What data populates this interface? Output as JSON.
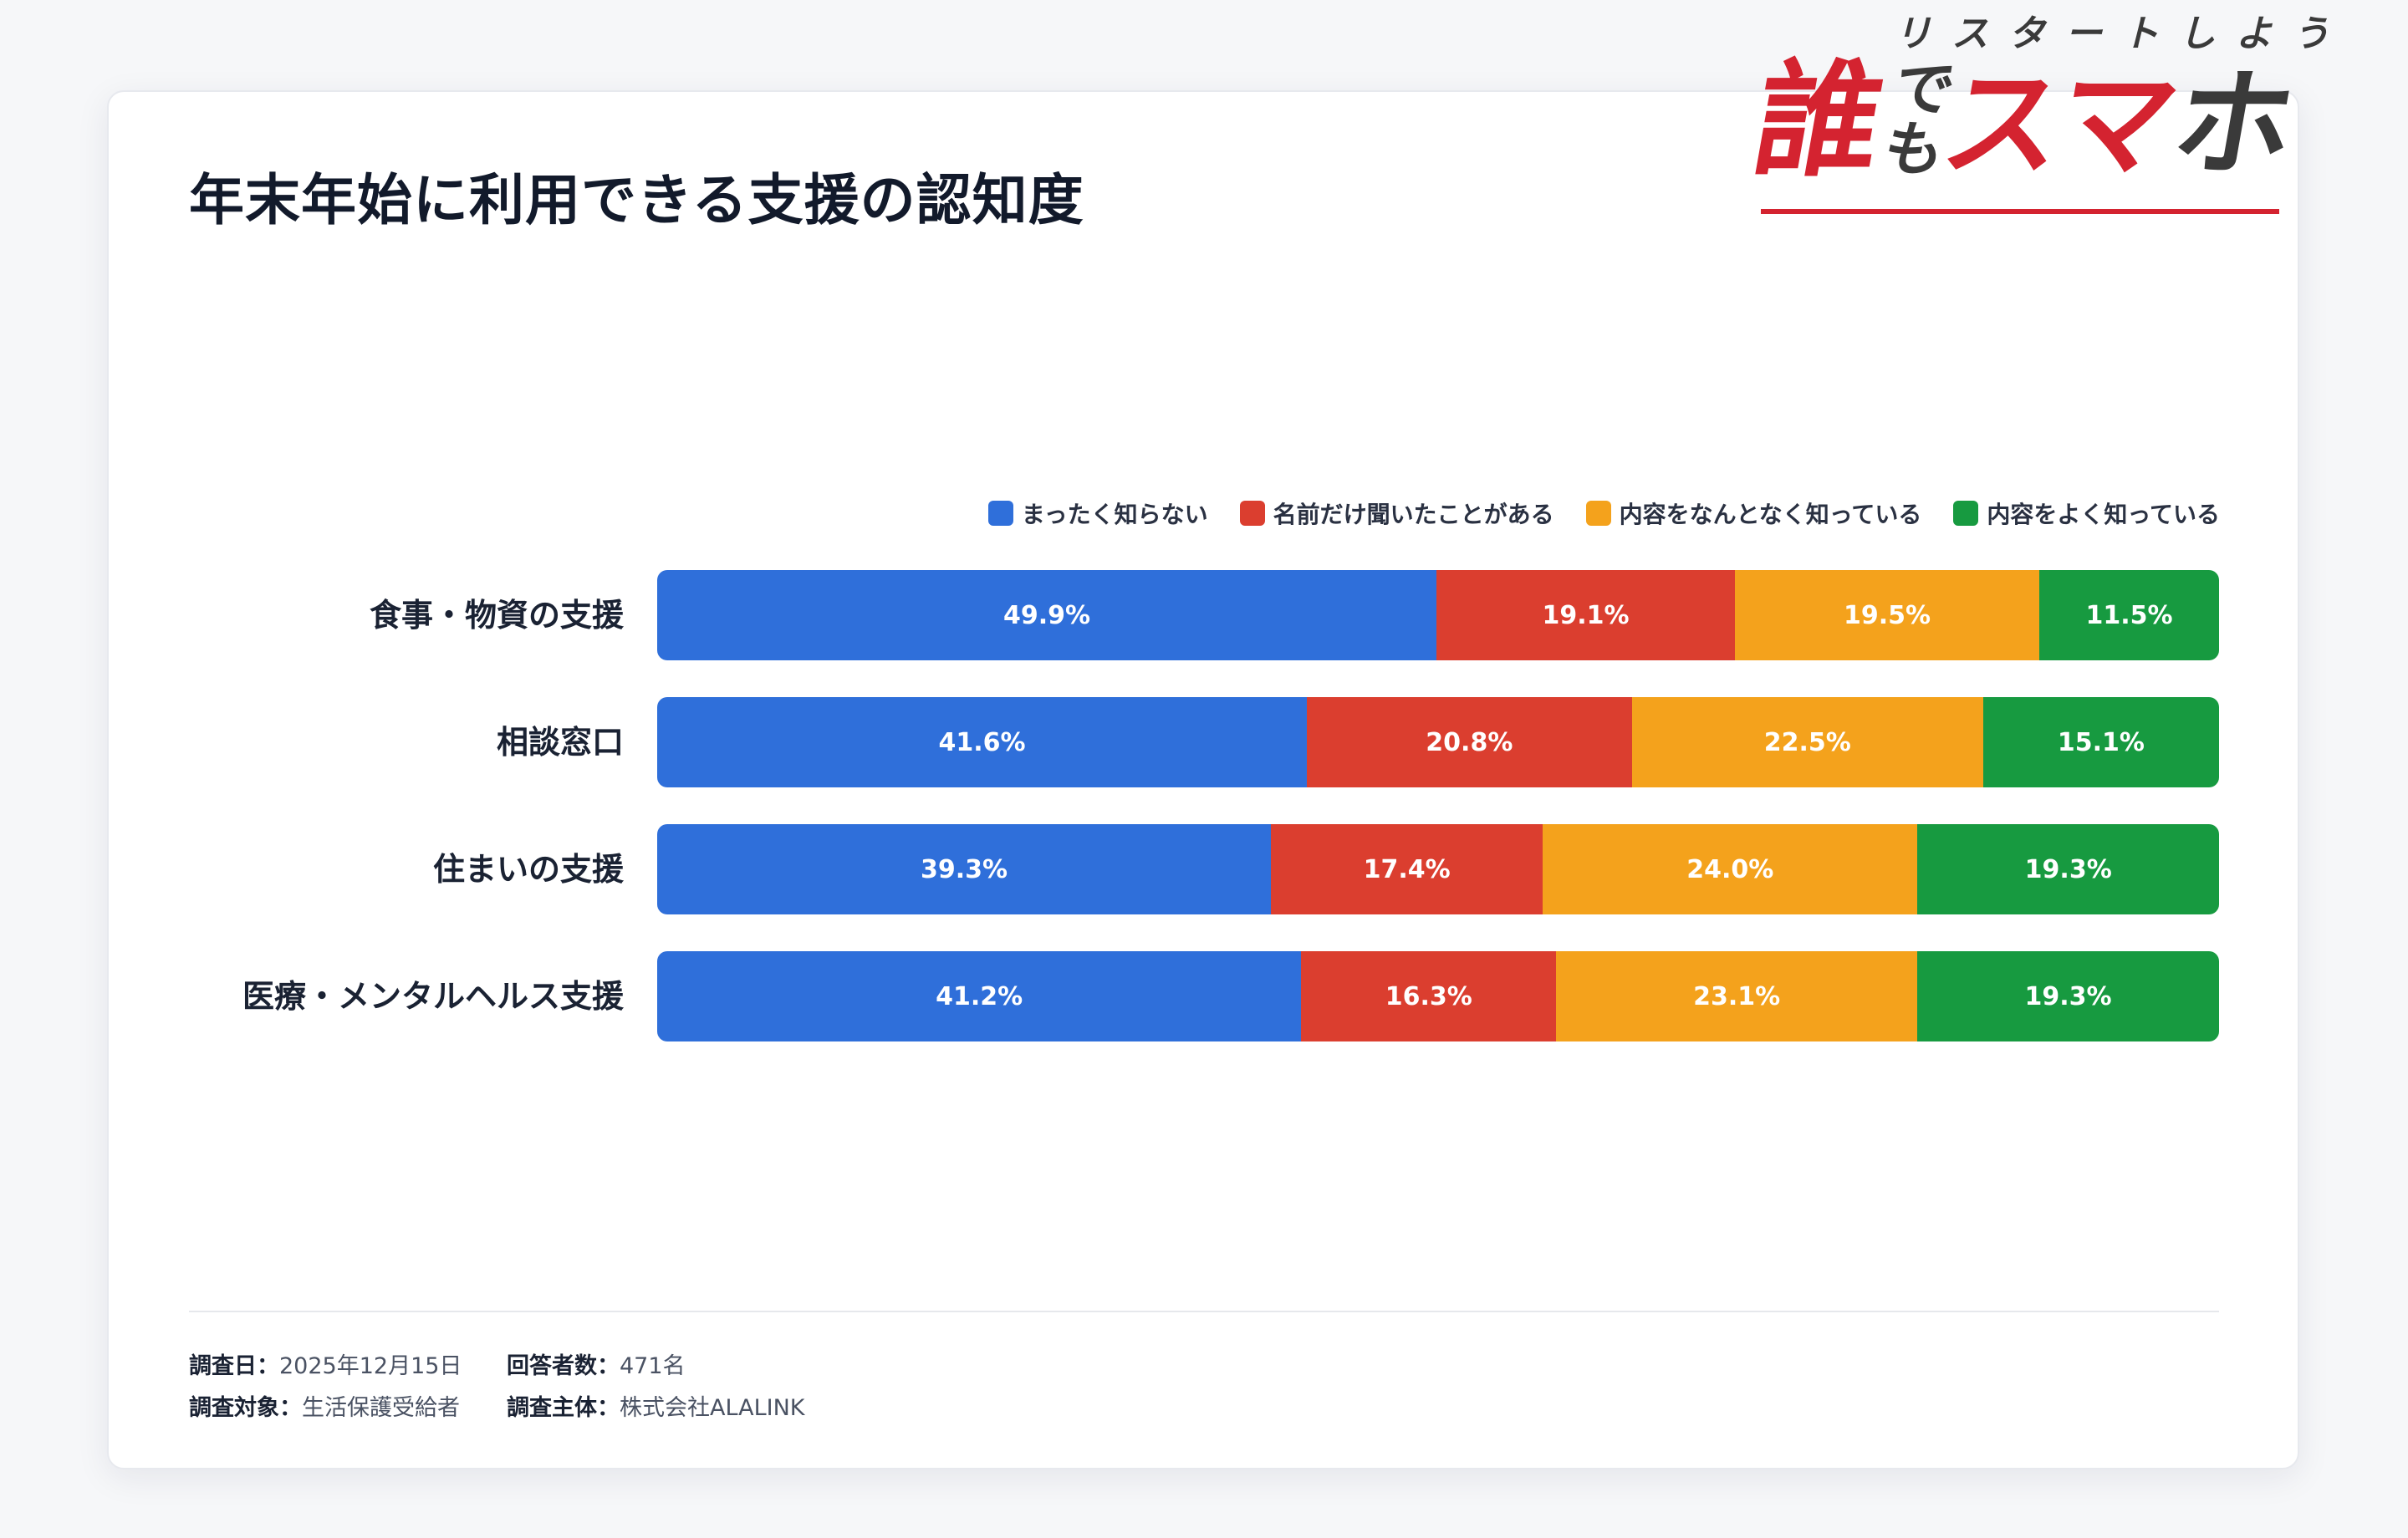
{
  "header": {
    "title": "年末年始に利用できる支援の認知度"
  },
  "logo": {
    "tagline": "リスタートしよう",
    "dare": "誰",
    "demo": "でも",
    "suma": "スマ",
    "ho": "ホ",
    "brand_red": "#d42330",
    "brand_gray": "#3a3a3a"
  },
  "chart_data": {
    "type": "bar",
    "orientation": "horizontal",
    "stacked": true,
    "legend_position": "top-right",
    "categories": [
      "食事・物資の支援",
      "相談窓口",
      "住まいの支援",
      "医療・メンタルヘルス支援"
    ],
    "series": [
      {
        "name": "まったく知らない",
        "color": "#2f6fda",
        "values": [
          49.9,
          41.6,
          39.3,
          41.2
        ],
        "labels": [
          "49.9%",
          "41.6%",
          "39.3%",
          "41.2%"
        ]
      },
      {
        "name": "名前だけ聞いたことがある",
        "color": "#db3e2f",
        "values": [
          19.1,
          20.8,
          17.4,
          16.3
        ],
        "labels": [
          "19.1%",
          "20.8%",
          "17.4%",
          "16.3%"
        ]
      },
      {
        "name": "内容をなんとなく知っている",
        "color": "#f4a21c",
        "values": [
          19.5,
          22.5,
          24.0,
          23.1
        ],
        "labels": [
          "19.5%",
          "22.5%",
          "24.0%",
          "23.1%"
        ]
      },
      {
        "name": "内容をよく知っている",
        "color": "#179a40",
        "values": [
          11.5,
          15.1,
          19.3,
          19.3
        ],
        "labels": [
          "11.5%",
          "15.1%",
          "19.3%",
          "19.3%"
        ]
      }
    ]
  },
  "footer": {
    "date_key": "調査日：",
    "date_value": "2025年12月15日",
    "respondents_key": "回答者数：",
    "respondents_value": "471名",
    "target_key": "調査対象：",
    "target_value": "生活保護受給者",
    "sponsor_key": "調査主体：",
    "sponsor_value": "株式会社ALALINK"
  }
}
